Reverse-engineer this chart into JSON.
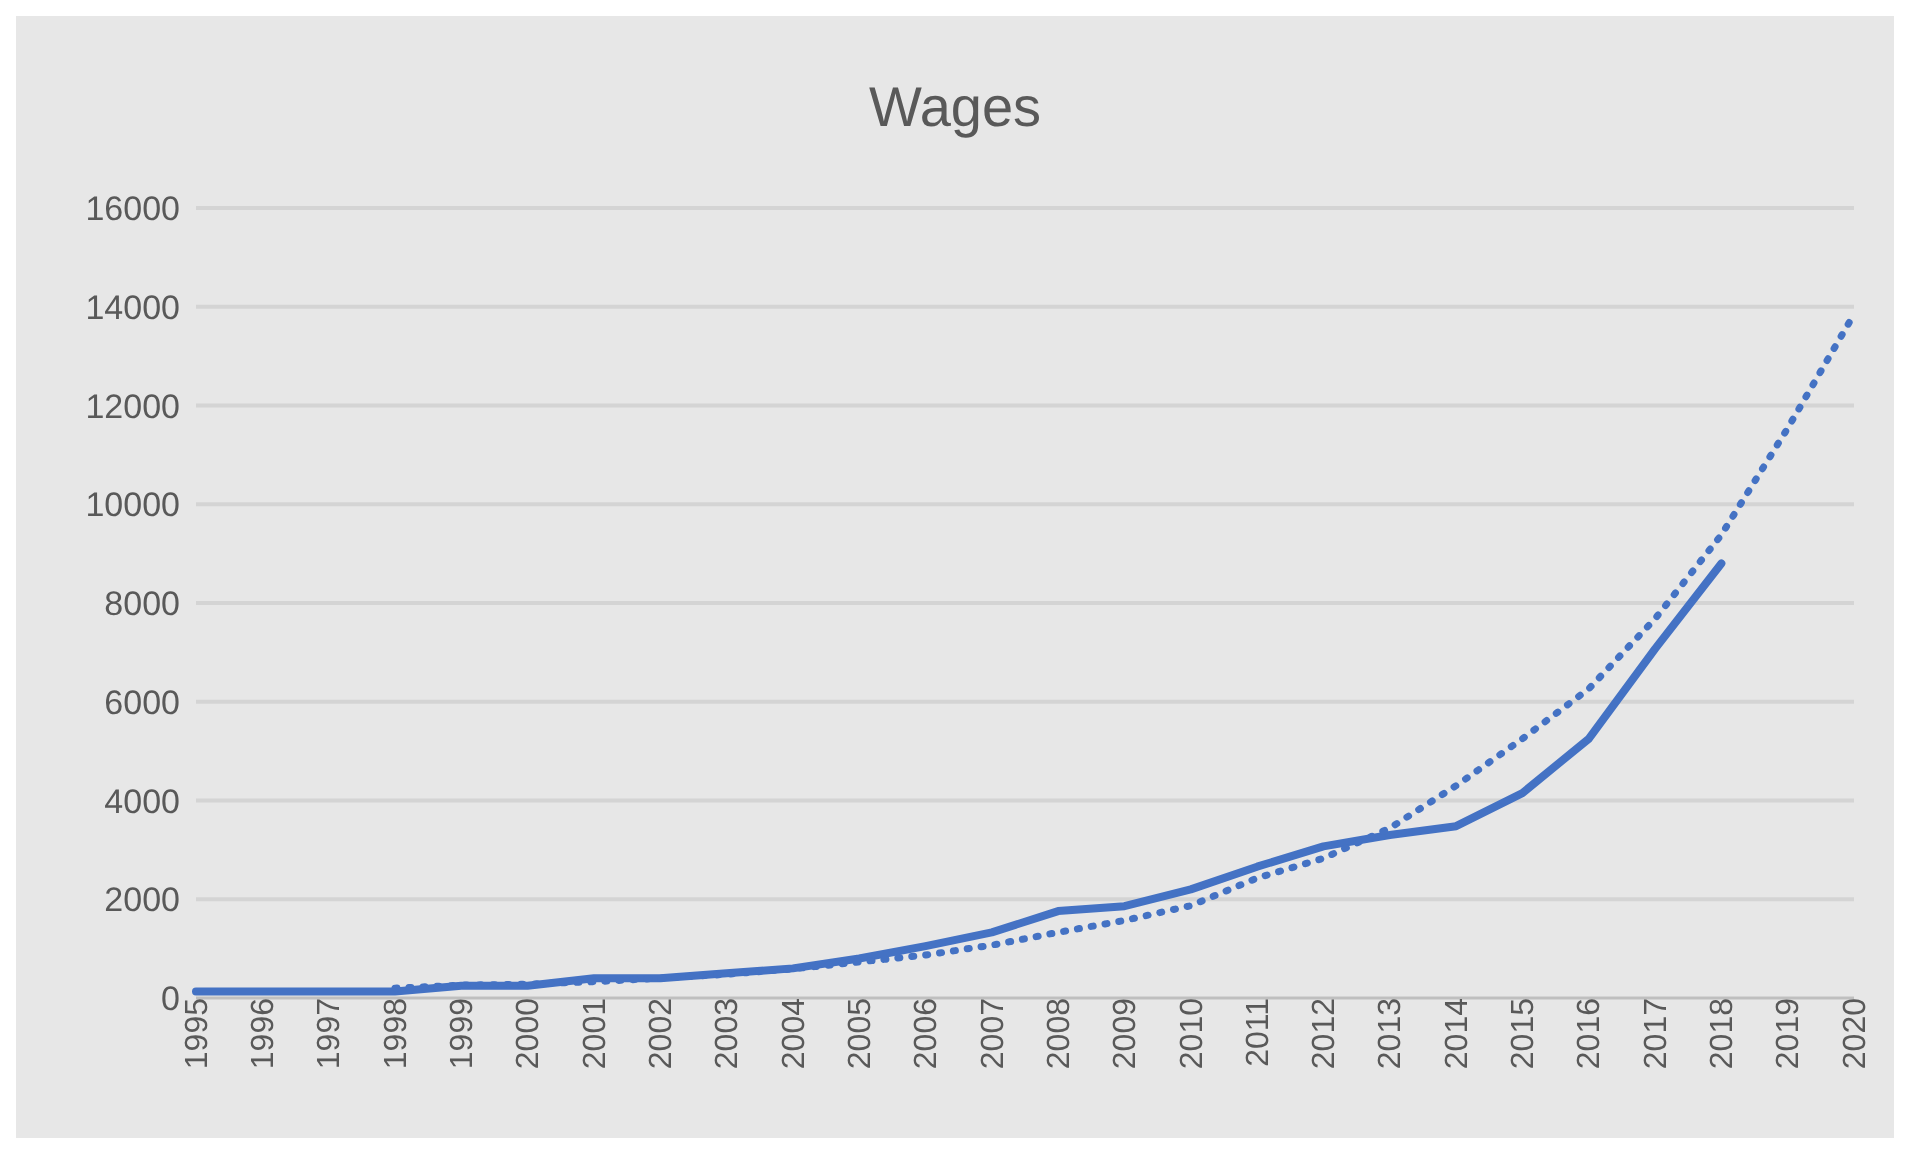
{
  "chart_data": {
    "type": "line",
    "title": "Wages",
    "categories": [
      "1995",
      "1996",
      "1997",
      "1998",
      "1999",
      "2000",
      "2001",
      "2002",
      "2003",
      "2004",
      "2005",
      "2006",
      "2007",
      "2008",
      "2009",
      "2010",
      "2011",
      "2012",
      "2013",
      "2014",
      "2015",
      "2016",
      "2017",
      "2018",
      "2019",
      "2020"
    ],
    "series": [
      {
        "color": "#4472c4",
        "line_style": "solid",
        "values": [
          130,
          130,
          130,
          130,
          250,
          250,
          400,
          400,
          500,
          600,
          800,
          1050,
          1330,
          1760,
          1860,
          2200,
          2660,
          3070,
          3300,
          3480,
          4150,
          5250,
          7070,
          8800,
          null,
          null
        ]
      },
      {
        "color": "#4472c4",
        "line_style": "dotted",
        "values": [
          null,
          null,
          null,
          200,
          260,
          280,
          330,
          400,
          480,
          590,
          730,
          870,
          1070,
          1330,
          1570,
          1870,
          2430,
          2830,
          3440,
          4300,
          5250,
          6260,
          7680,
          9380,
          11540,
          13850
        ]
      }
    ],
    "ylim": [
      0,
      16000
    ],
    "yticks": [
      0,
      2000,
      4000,
      6000,
      8000,
      10000,
      12000,
      14000,
      16000
    ],
    "grid": "y",
    "legend": false,
    "marker": "none"
  }
}
